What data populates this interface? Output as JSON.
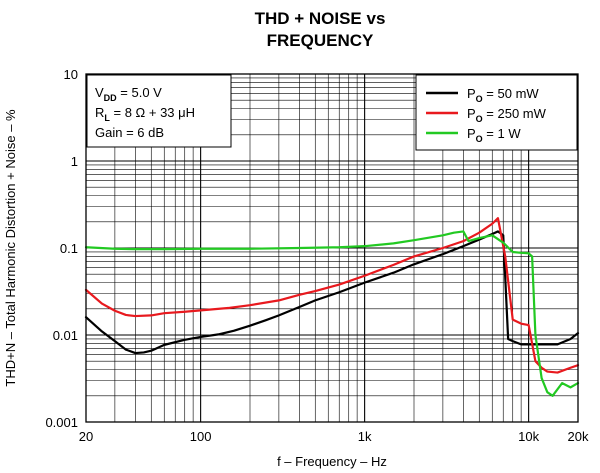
{
  "chart_data": {
    "type": "line",
    "title_line1": "THD + NOISE vs",
    "title_line2": "FREQUENCY",
    "xlabel": "f – Frequency – Hz",
    "ylabel": "THD+N – Total Harmonic Distortion + Noise – %",
    "x_scale": "log",
    "y_scale": "log",
    "xlim": [
      20,
      20000
    ],
    "ylim": [
      0.001,
      10
    ],
    "grid": true,
    "x_ticks": [
      {
        "value": 20,
        "label": "20"
      },
      {
        "value": 100,
        "label": "100"
      },
      {
        "value": 1000,
        "label": "1k"
      },
      {
        "value": 10000,
        "label": "10k"
      },
      {
        "value": 20000,
        "label": "20k"
      }
    ],
    "y_ticks": [
      {
        "value": 0.001,
        "label": "0.001"
      },
      {
        "value": 0.01,
        "label": "0.01"
      },
      {
        "value": 0.1,
        "label": "0.1"
      },
      {
        "value": 1,
        "label": "1"
      },
      {
        "value": 10,
        "label": "10"
      }
    ],
    "conditions": {
      "vdd": {
        "main": "V",
        "sub": "DD",
        "rest": " = 5.0 V"
      },
      "rl": {
        "main": "R",
        "sub": "L",
        "rest": " = 8 Ω + 33 μH"
      },
      "gain": "Gain = 6 dB"
    },
    "legend_position": "top-right",
    "series": [
      {
        "name_main": "P",
        "name_sub": "O",
        "name_rest": " = 50 mW",
        "color": "#000000",
        "points": [
          [
            20,
            0.016
          ],
          [
            25,
            0.011
          ],
          [
            30,
            0.0085
          ],
          [
            35,
            0.0068
          ],
          [
            40,
            0.0062
          ],
          [
            45,
            0.0063
          ],
          [
            50,
            0.0066
          ],
          [
            60,
            0.0077
          ],
          [
            80,
            0.0088
          ],
          [
            100,
            0.0095
          ],
          [
            130,
            0.0102
          ],
          [
            160,
            0.0112
          ],
          [
            200,
            0.0128
          ],
          [
            250,
            0.0148
          ],
          [
            300,
            0.0168
          ],
          [
            400,
            0.021
          ],
          [
            500,
            0.025
          ],
          [
            700,
            0.031
          ],
          [
            1000,
            0.04
          ],
          [
            1500,
            0.052
          ],
          [
            2000,
            0.065
          ],
          [
            3000,
            0.085
          ],
          [
            4000,
            0.105
          ],
          [
            5000,
            0.125
          ],
          [
            6000,
            0.145
          ],
          [
            6500,
            0.155
          ],
          [
            7000,
            0.14
          ],
          [
            7500,
            0.009
          ],
          [
            8000,
            0.0085
          ],
          [
            9000,
            0.0078
          ],
          [
            10000,
            0.0078
          ],
          [
            12000,
            0.0078
          ],
          [
            15000,
            0.0078
          ],
          [
            18000,
            0.009
          ],
          [
            20000,
            0.0105
          ]
        ]
      },
      {
        "name_main": "P",
        "name_sub": "O",
        "name_rest": " = 250 mW",
        "color": "#e8191e",
        "points": [
          [
            20,
            0.033
          ],
          [
            25,
            0.023
          ],
          [
            30,
            0.019
          ],
          [
            35,
            0.017
          ],
          [
            40,
            0.0165
          ],
          [
            50,
            0.0168
          ],
          [
            60,
            0.0178
          ],
          [
            80,
            0.0185
          ],
          [
            100,
            0.0192
          ],
          [
            150,
            0.0205
          ],
          [
            200,
            0.022
          ],
          [
            300,
            0.025
          ],
          [
            400,
            0.029
          ],
          [
            500,
            0.032
          ],
          [
            700,
            0.038
          ],
          [
            1000,
            0.048
          ],
          [
            1500,
            0.064
          ],
          [
            2000,
            0.08
          ],
          [
            3000,
            0.1
          ],
          [
            4000,
            0.12
          ],
          [
            5000,
            0.15
          ],
          [
            6000,
            0.19
          ],
          [
            6500,
            0.22
          ],
          [
            7200,
            0.08
          ],
          [
            8000,
            0.015
          ],
          [
            9000,
            0.0135
          ],
          [
            10000,
            0.013
          ],
          [
            11000,
            0.005
          ],
          [
            12000,
            0.0042
          ],
          [
            13000,
            0.0038
          ],
          [
            15000,
            0.0037
          ],
          [
            18000,
            0.0042
          ],
          [
            20000,
            0.0045
          ]
        ]
      },
      {
        "name_main": "P",
        "name_sub": "O",
        "name_rest": " = 1 W",
        "color": "#22c922",
        "points": [
          [
            20,
            0.102
          ],
          [
            30,
            0.098
          ],
          [
            40,
            0.097
          ],
          [
            60,
            0.097
          ],
          [
            100,
            0.098
          ],
          [
            200,
            0.098
          ],
          [
            400,
            0.1
          ],
          [
            700,
            0.102
          ],
          [
            1000,
            0.105
          ],
          [
            1500,
            0.113
          ],
          [
            2000,
            0.123
          ],
          [
            3000,
            0.14
          ],
          [
            3500,
            0.15
          ],
          [
            4000,
            0.155
          ],
          [
            4300,
            0.12
          ],
          [
            5000,
            0.13
          ],
          [
            6000,
            0.14
          ],
          [
            7000,
            0.115
          ],
          [
            8000,
            0.09
          ],
          [
            9000,
            0.088
          ],
          [
            10000,
            0.087
          ],
          [
            10500,
            0.08
          ],
          [
            11000,
            0.01
          ],
          [
            12000,
            0.0032
          ],
          [
            13000,
            0.0022
          ],
          [
            14000,
            0.002
          ],
          [
            16000,
            0.0028
          ],
          [
            18000,
            0.0025
          ],
          [
            20000,
            0.0028
          ]
        ]
      }
    ]
  }
}
